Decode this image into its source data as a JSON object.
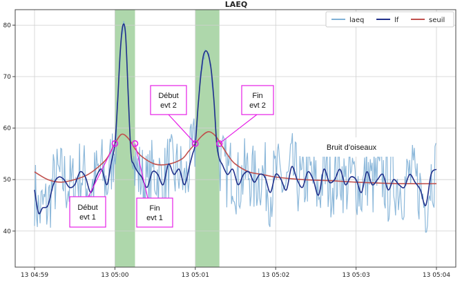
{
  "chart_data": {
    "type": "line",
    "title": "LAEQ",
    "xlabel": "",
    "ylabel": "",
    "grid": true,
    "legend_position": "top-right",
    "x_range_seconds": [
      0,
      300
    ],
    "ylim": [
      33,
      83
    ],
    "x_ticks": [
      {
        "x": 0,
        "label": "13 04:59"
      },
      {
        "x": 60,
        "label": "13 05:00"
      },
      {
        "x": 120,
        "label": "13 05:01"
      },
      {
        "x": 180,
        "label": "13 05:02"
      },
      {
        "x": 240,
        "label": "13 05:03"
      },
      {
        "x": 300,
        "label": "13 05:04"
      }
    ],
    "y_ticks": [
      40,
      50,
      60,
      70,
      80
    ],
    "series": [
      {
        "name": "laeq",
        "color": "#7fb0d6"
      },
      {
        "name": "lf",
        "color": "#1f2f8a",
        "x": [
          0,
          3,
          6,
          10,
          14,
          18,
          22,
          26,
          30,
          34,
          38,
          42,
          46,
          50,
          54,
          57,
          60,
          62,
          64,
          66,
          68,
          70,
          72,
          74,
          77,
          80,
          84,
          88,
          92,
          96,
          100,
          104,
          108,
          112,
          116,
          118,
          120,
          122,
          124,
          126,
          128,
          130,
          132,
          134,
          136,
          138,
          140,
          144,
          148,
          152,
          156,
          160,
          164,
          168,
          172,
          176,
          180,
          184,
          188,
          192,
          196,
          200,
          204,
          208,
          212,
          216,
          220,
          224,
          228,
          232,
          236,
          240,
          244,
          248,
          252,
          256,
          260,
          264,
          268,
          272,
          276,
          280,
          284,
          288,
          292,
          296,
          300
        ],
        "y": [
          48,
          43.5,
          44.5,
          45,
          49,
          50.5,
          50,
          48.5,
          49,
          51.5,
          50.5,
          47.5,
          50.5,
          52,
          49,
          53,
          57,
          65,
          75,
          80,
          78,
          66,
          55,
          53,
          51.5,
          50.5,
          48.5,
          51.5,
          51,
          49,
          53,
          51,
          52,
          49,
          53,
          55,
          57,
          64,
          70,
          74,
          75,
          74,
          71,
          65,
          57,
          54,
          53,
          51,
          52,
          49,
          51,
          51.5,
          49.5,
          51,
          50.5,
          47.5,
          51,
          50,
          48,
          52.5,
          50,
          48.5,
          51.5,
          50,
          47,
          52,
          49.5,
          50,
          52,
          49,
          50.5,
          50,
          47.5,
          51.5,
          49,
          50,
          51,
          48,
          50,
          49,
          48.5,
          51,
          49.5,
          48,
          45,
          51,
          52
        ]
      },
      {
        "name": "seuil",
        "color": "#c0504d",
        "x": [
          0,
          10,
          20,
          30,
          40,
          50,
          55,
          60,
          65,
          70,
          75,
          80,
          90,
          100,
          110,
          115,
          120,
          125,
          130,
          135,
          140,
          145,
          150,
          160,
          170,
          180,
          200,
          220,
          240,
          260,
          280,
          300
        ],
        "y": [
          51.5,
          50,
          49.5,
          50,
          51,
          53,
          54.5,
          57,
          58.8,
          58,
          56,
          54.5,
          53,
          53,
          54,
          55.5,
          57,
          58.5,
          59.3,
          58.5,
          56.5,
          54.5,
          53,
          51.5,
          51,
          50.5,
          50,
          49.8,
          49.5,
          49.3,
          49.2,
          49.2
        ]
      }
    ],
    "shaded_regions": [
      {
        "x0": 60,
        "x1": 75
      },
      {
        "x0": 120,
        "x1": 138
      }
    ],
    "event_markers": [
      {
        "x": 60,
        "y": 57
      },
      {
        "x": 75,
        "y": 57
      },
      {
        "x": 120,
        "y": 57
      },
      {
        "x": 138,
        "y": 57
      }
    ],
    "annotations": [
      {
        "text": "Début\nevt 1",
        "target_index": 0
      },
      {
        "text": "Fin\nevt 1",
        "target_index": 1
      },
      {
        "text": "Début\nevt 2",
        "target_index": 2
      },
      {
        "text": "Fin\nevt 2",
        "target_index": 3
      },
      {
        "text": "Bruit d’oiseaux",
        "target_index": -1
      }
    ]
  }
}
